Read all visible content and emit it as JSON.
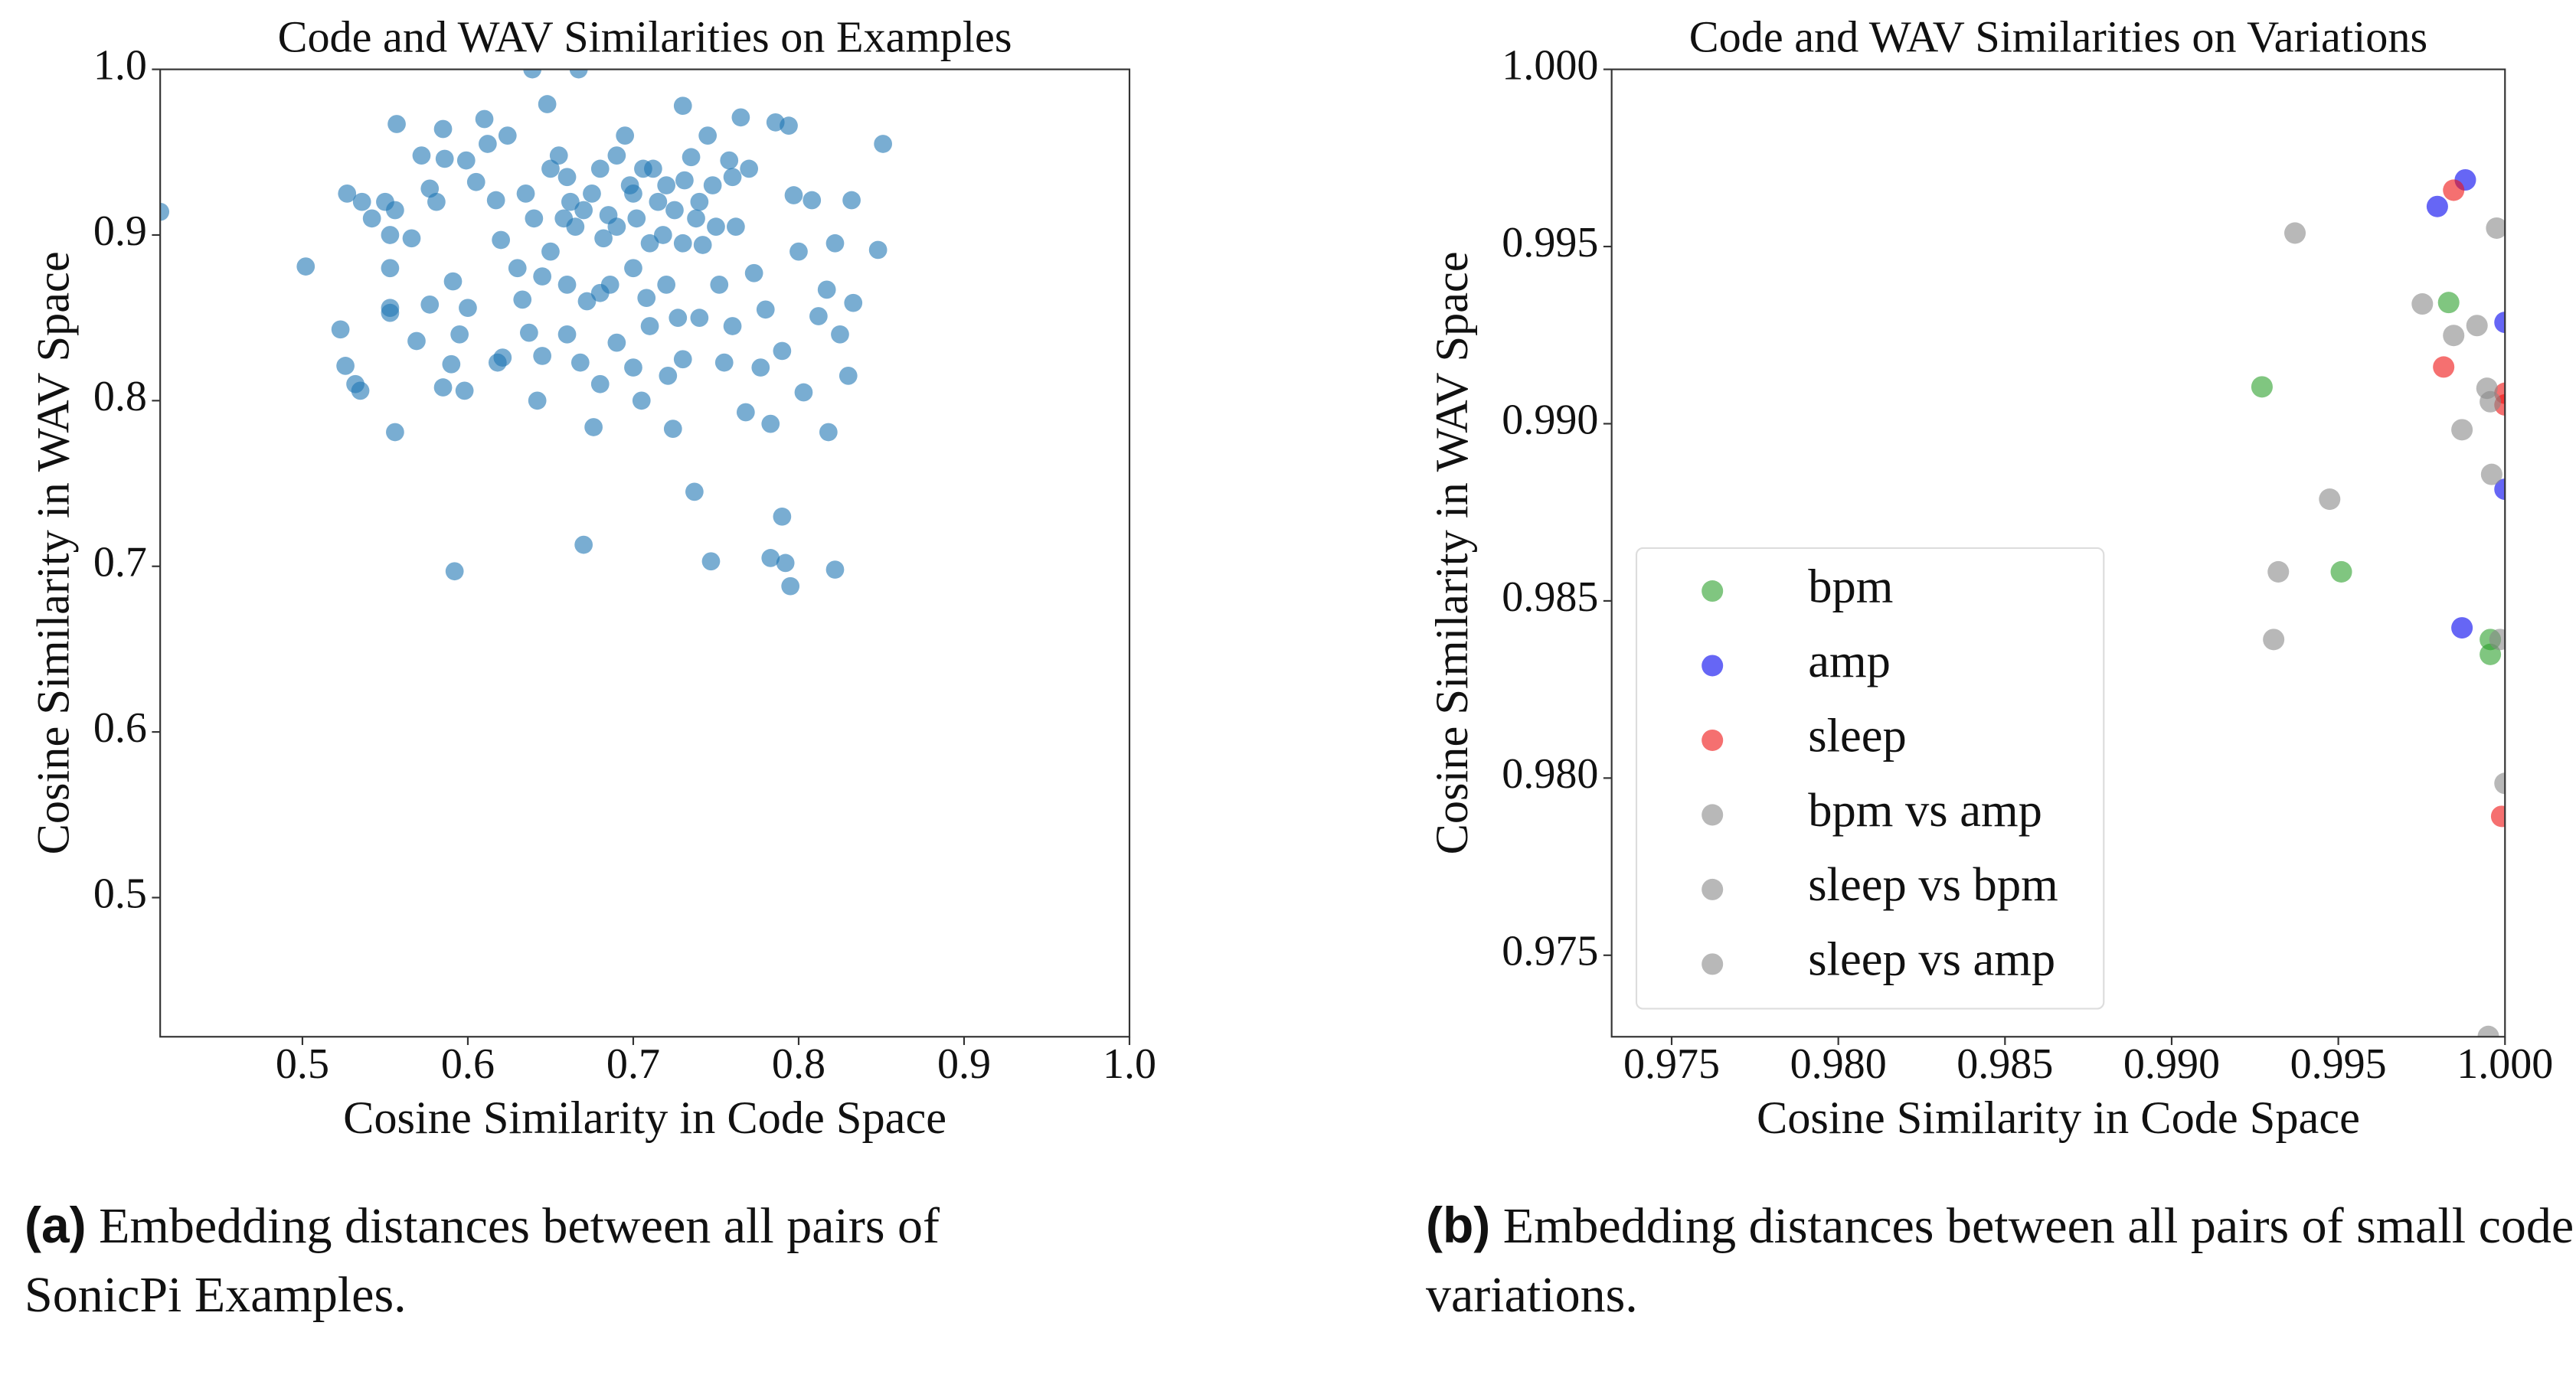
{
  "chart_data": [
    {
      "type": "scatter",
      "title": "Code and WAV Similarities on Examples",
      "xlabel": "Cosine Similarity in Code Space",
      "ylabel": "Cosine Similarity in WAV Space",
      "xlim": [
        0.414,
        1.0
      ],
      "ylim": [
        0.416,
        1.0
      ],
      "xticks": [
        0.5,
        0.6,
        0.7,
        0.8,
        0.9,
        {
          "value": 1.0,
          "label": "1.0"
        }
      ],
      "yticks": [
        0.5,
        0.6,
        0.7,
        0.8,
        0.9,
        {
          "value": 1.0,
          "label": "1.0"
        }
      ],
      "series": [
        {
          "color": "#1f77b4",
          "x": [
            0.414,
            0.502,
            0.523,
            0.526,
            0.532,
            0.535,
            0.556,
            0.592,
            0.67,
            0.737,
            0.747,
            0.783,
            0.79,
            0.792,
            0.795,
            0.822,
            0.851,
            0.848,
            0.832,
            0.833,
            0.83,
            0.818,
            0.808,
            0.639,
            0.667,
            0.73,
            0.648,
            0.557,
            0.527,
            0.536,
            0.542,
            0.55,
            0.553,
            0.556,
            0.553,
            0.553,
            0.553,
            0.566,
            0.572,
            0.577,
            0.585,
            0.586,
            0.581,
            0.585,
            0.59,
            0.595,
            0.598,
            0.6,
            0.591,
            0.577,
            0.569,
            0.599,
            0.605,
            0.61,
            0.612,
            0.617,
            0.62,
            0.624,
            0.63,
            0.633,
            0.618,
            0.621,
            0.637,
            0.642,
            0.645,
            0.65,
            0.655,
            0.658,
            0.662,
            0.668,
            0.672,
            0.676,
            0.682,
            0.686,
            0.69,
            0.695,
            0.698,
            0.702,
            0.705,
            0.708,
            0.712,
            0.715,
            0.718,
            0.721,
            0.724,
            0.727,
            0.731,
            0.735,
            0.738,
            0.742,
            0.745,
            0.748,
            0.752,
            0.755,
            0.758,
            0.762,
            0.765,
            0.768,
            0.77,
            0.773,
            0.777,
            0.78,
            0.783,
            0.786,
            0.79,
            0.794,
            0.797,
            0.8,
            0.803,
            0.812,
            0.817,
            0.822,
            0.825,
            0.66,
            0.665,
            0.67,
            0.675,
            0.68,
            0.685,
            0.69,
            0.7,
            0.706,
            0.71,
            0.72,
            0.725,
            0.73,
            0.74,
            0.75,
            0.76,
            0.7,
            0.68,
            0.66,
            0.65,
            0.64,
            0.635,
            0.645,
            0.69,
            0.7,
            0.71,
            0.73,
            0.74,
            0.76,
            0.72,
            0.68,
            0.66
          ],
          "values": [
            0.914,
            0.881,
            0.843,
            0.821,
            0.81,
            0.806,
            0.781,
            0.697,
            0.713,
            0.745,
            0.703,
            0.705,
            0.73,
            0.702,
            0.688,
            0.698,
            0.955,
            0.891,
            0.921,
            0.859,
            0.815,
            0.781,
            0.921,
            1.0,
            1.0,
            0.978,
            0.979,
            0.967,
            0.925,
            0.92,
            0.91,
            0.92,
            0.9,
            0.915,
            0.88,
            0.856,
            0.853,
            0.898,
            0.948,
            0.928,
            0.964,
            0.946,
            0.92,
            0.808,
            0.822,
            0.84,
            0.806,
            0.856,
            0.872,
            0.858,
            0.836,
            0.945,
            0.932,
            0.97,
            0.955,
            0.921,
            0.897,
            0.96,
            0.88,
            0.861,
            0.823,
            0.826,
            0.841,
            0.8,
            0.827,
            0.94,
            0.948,
            0.91,
            0.92,
            0.823,
            0.86,
            0.784,
            0.898,
            0.87,
            0.948,
            0.96,
            0.93,
            0.91,
            0.8,
            0.862,
            0.94,
            0.92,
            0.9,
            0.815,
            0.783,
            0.85,
            0.933,
            0.947,
            0.91,
            0.894,
            0.96,
            0.93,
            0.87,
            0.823,
            0.945,
            0.905,
            0.971,
            0.793,
            0.94,
            0.877,
            0.82,
            0.855,
            0.786,
            0.968,
            0.83,
            0.966,
            0.924,
            0.89,
            0.805,
            0.851,
            0.867,
            0.895,
            0.84,
            0.935,
            0.905,
            0.915,
            0.925,
            0.94,
            0.912,
            0.905,
            0.925,
            0.94,
            0.895,
            0.93,
            0.915,
            0.895,
            0.92,
            0.905,
            0.935,
            0.88,
            0.865,
            0.87,
            0.89,
            0.91,
            0.925,
            0.875,
            0.835,
            0.82,
            0.845,
            0.825,
            0.85,
            0.845,
            0.87,
            0.81,
            0.84
          ]
        }
      ]
    },
    {
      "type": "scatter",
      "title": "Code and WAV Similarities on Variations",
      "xlabel": "Cosine Similarity in Code Space",
      "ylabel": "Cosine Similarity in WAV Space",
      "xlim": [
        0.9732,
        1.0
      ],
      "ylim": [
        0.9727,
        1.0
      ],
      "xticks": [
        0.975,
        {
          "value": 0.98,
          "label": "0.980"
        },
        0.985,
        {
          "value": 0.99,
          "label": "0.990"
        },
        0.995,
        {
          "value": 1.0,
          "label": "1.000"
        }
      ],
      "yticks": [
        0.975,
        {
          "value": 0.98,
          "label": "0.980"
        },
        0.985,
        {
          "value": 0.99,
          "label": "0.990"
        },
        0.995,
        {
          "value": 1.0,
          "label": "1.000"
        }
      ],
      "legend": "lower left",
      "series": [
        {
          "name": "bpm",
          "color": "#2ca02c",
          "x": [
            0.99271,
            0.99509,
            0.99831,
            0.99956,
            0.99956
          ],
          "values": [
            0.99104,
            0.98582,
            0.99342,
            0.98391,
            0.98349
          ]
        },
        {
          "name": "amp",
          "color": "#0000ee",
          "x": [
            0.99797,
            0.99881,
            1.0,
            1.0,
            0.99871
          ],
          "values": [
            0.99613,
            0.99688,
            0.99286,
            0.98815,
            0.98424
          ]
        },
        {
          "name": "sleep",
          "color": "#ee1111",
          "x": [
            0.99846,
            0.99816,
            1.0,
            1.0,
            0.9999
          ],
          "values": [
            0.99659,
            0.9916,
            0.99086,
            0.99053,
            0.97892
          ]
        },
        {
          "name": "bpm vs amp",
          "color": "#888888",
          "x": [
            0.9937,
            0.99752,
            0.99846,
            0.99916,
            0.99975
          ],
          "values": [
            0.99538,
            0.99338,
            0.99249,
            0.99277,
            0.99552
          ]
        },
        {
          "name": "sleep vs bpm",
          "color": "#888888",
          "x": [
            0.99946,
            0.99956,
            0.99871,
            0.9996,
            0.99474
          ],
          "values": [
            0.991,
            0.99062,
            0.98983,
            0.98857,
            0.98787
          ]
        },
        {
          "name": "sleep vs amp",
          "color": "#888888",
          "x": [
            0.9932,
            0.99306,
            0.99985,
            1.0,
            0.9995
          ],
          "values": [
            0.98582,
            0.98391,
            0.98391,
            0.97985,
            0.97271
          ]
        }
      ]
    }
  ],
  "captions": [
    {
      "label": "(a)",
      "text": "Embedding distances between all pairs of SonicPi Examples."
    },
    {
      "label": "(b)",
      "text": "Embedding distances between all pairs of small code variations."
    }
  ]
}
